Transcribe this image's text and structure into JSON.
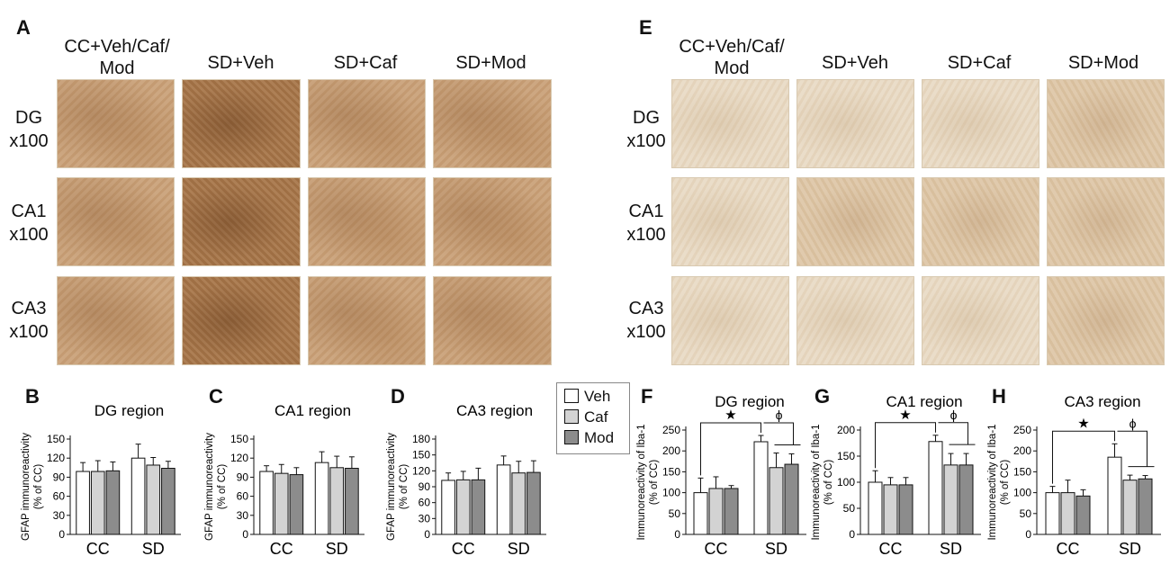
{
  "panels": {
    "A": "A",
    "E": "E",
    "B": "B",
    "C": "C",
    "D": "D",
    "F": "F",
    "G": "G",
    "H": "H"
  },
  "image_columns": [
    "CC+Veh/Caf/ Mod",
    "SD+Veh",
    "SD+Caf",
    "SD+Mod"
  ],
  "image_rows": [
    {
      "region": "DG",
      "mag": "x100"
    },
    {
      "region": "CA1",
      "mag": "x100"
    },
    {
      "region": "CA3",
      "mag": "x100"
    }
  ],
  "legend": [
    {
      "label": "Veh",
      "color": "#ffffff"
    },
    {
      "label": "Caf",
      "color": "#d3d3d3"
    },
    {
      "label": "Mod",
      "color": "#8c8c8c"
    }
  ],
  "chart_data": [
    {
      "type": "bar",
      "panel": "B",
      "title": "DG region",
      "ylabel_1": "GFAP immunoreactivity",
      "ylabel_2": "(% of CC)",
      "categories": [
        "CC",
        "SD"
      ],
      "ylim": [
        0,
        150
      ],
      "yticks": [
        0,
        30,
        60,
        90,
        120,
        150
      ],
      "series": [
        {
          "name": "Veh",
          "values": [
            99,
            120
          ],
          "errors": [
            14,
            22
          ]
        },
        {
          "name": "Caf",
          "values": [
            99,
            109
          ],
          "errors": [
            17,
            12
          ]
        },
        {
          "name": "Mod",
          "values": [
            100,
            104
          ],
          "errors": [
            14,
            11
          ]
        }
      ],
      "annotations": []
    },
    {
      "type": "bar",
      "panel": "C",
      "title": "CA1 region",
      "ylabel_1": "GFAP immunoreactivity",
      "ylabel_2": "(% of CC)",
      "categories": [
        "CC",
        "SD"
      ],
      "ylim": [
        0,
        150
      ],
      "yticks": [
        0,
        30,
        60,
        90,
        120,
        150
      ],
      "series": [
        {
          "name": "Veh",
          "values": [
            99,
            113
          ],
          "errors": [
            9,
            17
          ]
        },
        {
          "name": "Caf",
          "values": [
            96,
            105
          ],
          "errors": [
            14,
            18
          ]
        },
        {
          "name": "Mod",
          "values": [
            94,
            104
          ],
          "errors": [
            11,
            18
          ]
        }
      ],
      "annotations": []
    },
    {
      "type": "bar",
      "panel": "D",
      "title": "CA3 region",
      "ylabel_1": "GFAP immunoreactivity",
      "ylabel_2": "(% of CC)",
      "categories": [
        "CC",
        "SD"
      ],
      "ylim": [
        0,
        180
      ],
      "yticks": [
        0,
        30,
        60,
        90,
        120,
        150,
        180
      ],
      "series": [
        {
          "name": "Veh",
          "values": [
            102,
            131
          ],
          "errors": [
            14,
            17
          ]
        },
        {
          "name": "Caf",
          "values": [
            103,
            116
          ],
          "errors": [
            16,
            22
          ]
        },
        {
          "name": "Mod",
          "values": [
            103,
            117
          ],
          "errors": [
            22,
            22
          ]
        }
      ],
      "annotations": []
    },
    {
      "type": "bar",
      "panel": "F",
      "title": "DG region",
      "ylabel_1": "Immunoreactivity of Iba-1",
      "ylabel_2": "(% of CC)",
      "categories": [
        "CC",
        "SD"
      ],
      "ylim": [
        0,
        250
      ],
      "yticks": [
        0,
        50,
        100,
        150,
        200,
        250
      ],
      "series": [
        {
          "name": "Veh",
          "values": [
            100,
            222
          ],
          "errors": [
            35,
            15
          ]
        },
        {
          "name": "Caf",
          "values": [
            110,
            160
          ],
          "errors": [
            28,
            35
          ]
        },
        {
          "name": "Mod",
          "values": [
            110,
            168
          ],
          "errors": [
            7,
            25
          ]
        }
      ],
      "annotations": [
        "★",
        "ϕ"
      ]
    },
    {
      "type": "bar",
      "panel": "G",
      "title": "CA1 region",
      "ylabel_1": "Immunoreactivity of Iba-1",
      "ylabel_2": "(% of CC)",
      "categories": [
        "CC",
        "SD"
      ],
      "ylim": [
        0,
        200
      ],
      "yticks": [
        0,
        50,
        100,
        150,
        200
      ],
      "series": [
        {
          "name": "Veh",
          "values": [
            100,
            178
          ],
          "errors": [
            22,
            12
          ]
        },
        {
          "name": "Caf",
          "values": [
            95,
            133
          ],
          "errors": [
            14,
            22
          ]
        },
        {
          "name": "Mod",
          "values": [
            95,
            133
          ],
          "errors": [
            14,
            22
          ]
        }
      ],
      "annotations": [
        "★",
        "ϕ"
      ]
    },
    {
      "type": "bar",
      "panel": "H",
      "title": "CA3 region",
      "ylabel_1": "Immunoreactivity of Iba-1",
      "ylabel_2": "(% of CC)",
      "categories": [
        "CC",
        "SD"
      ],
      "ylim": [
        0,
        250
      ],
      "yticks": [
        0,
        50,
        100,
        150,
        200,
        250
      ],
      "series": [
        {
          "name": "Veh",
          "values": [
            100,
            185
          ],
          "errors": [
            15,
            32
          ]
        },
        {
          "name": "Caf",
          "values": [
            100,
            130
          ],
          "errors": [
            30,
            12
          ]
        },
        {
          "name": "Mod",
          "values": [
            92,
            133
          ],
          "errors": [
            15,
            8
          ]
        }
      ],
      "annotations": [
        "★",
        "ϕ"
      ]
    }
  ]
}
